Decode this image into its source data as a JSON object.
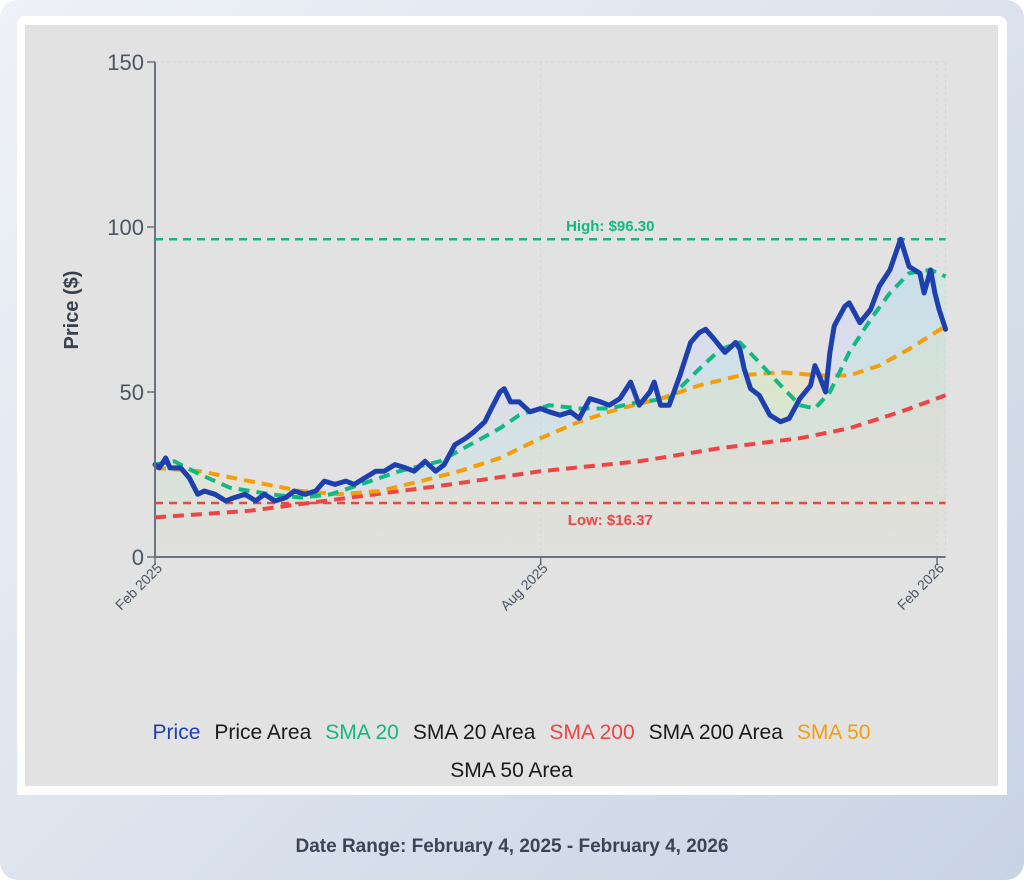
{
  "chart_data": {
    "type": "line",
    "title": "",
    "xlabel": "",
    "ylabel": "Price ($)",
    "ylim": [
      0,
      150
    ],
    "yticks": [
      0,
      50,
      100,
      150
    ],
    "x_unit": "days since Feb 4, 2025",
    "xlim": [
      0,
      369
    ],
    "xticks": [
      {
        "day": 0,
        "label": "Feb 2025"
      },
      {
        "day": 180,
        "label": "Aug 2025"
      },
      {
        "day": 365,
        "label": "Feb 2026"
      }
    ],
    "grid": true,
    "legend_position": "bottom",
    "annotations": [
      {
        "type": "hline",
        "value": 96.3,
        "label": "High: $96.30",
        "color": "#10b981"
      },
      {
        "type": "hline",
        "value": 16.37,
        "label": "Low: $16.37",
        "color": "#ef4444"
      }
    ],
    "series": [
      {
        "name": "Price",
        "color": "#1e40af",
        "style": "solid",
        "area": true,
        "area_name": "Price Area",
        "points": [
          [
            0,
            28
          ],
          [
            2,
            27
          ],
          [
            5,
            30
          ],
          [
            7,
            27
          ],
          [
            12,
            27
          ],
          [
            16,
            24
          ],
          [
            20,
            19
          ],
          [
            23,
            20
          ],
          [
            28,
            19
          ],
          [
            33,
            17
          ],
          [
            37,
            18
          ],
          [
            42,
            19
          ],
          [
            47,
            17
          ],
          [
            51,
            19
          ],
          [
            56,
            17
          ],
          [
            61,
            18
          ],
          [
            65,
            20
          ],
          [
            70,
            19
          ],
          [
            75,
            20
          ],
          [
            79,
            23
          ],
          [
            84,
            22
          ],
          [
            89,
            23
          ],
          [
            93,
            22
          ],
          [
            98,
            24
          ],
          [
            103,
            26
          ],
          [
            107,
            26
          ],
          [
            112,
            28
          ],
          [
            117,
            27
          ],
          [
            121,
            26
          ],
          [
            126,
            29
          ],
          [
            131,
            26
          ],
          [
            135,
            28
          ],
          [
            140,
            34
          ],
          [
            145,
            36
          ],
          [
            149,
            38
          ],
          [
            154,
            41
          ],
          [
            157,
            45
          ],
          [
            161,
            50
          ],
          [
            163,
            51
          ],
          [
            166,
            47
          ],
          [
            170,
            47
          ],
          [
            175,
            44
          ],
          [
            180,
            45
          ],
          [
            184,
            44
          ],
          [
            189,
            43
          ],
          [
            194,
            44
          ],
          [
            198,
            42
          ],
          [
            203,
            48
          ],
          [
            208,
            47
          ],
          [
            212,
            46
          ],
          [
            217,
            48
          ],
          [
            222,
            53
          ],
          [
            226,
            46
          ],
          [
            231,
            50
          ],
          [
            233,
            53
          ],
          [
            236,
            46
          ],
          [
            240,
            46
          ],
          [
            245,
            55
          ],
          [
            250,
            65
          ],
          [
            254,
            68
          ],
          [
            257,
            69
          ],
          [
            261,
            66
          ],
          [
            266,
            62
          ],
          [
            271,
            65
          ],
          [
            273,
            63
          ],
          [
            275,
            57
          ],
          [
            278,
            51
          ],
          [
            282,
            49
          ],
          [
            287,
            43
          ],
          [
            292,
            41
          ],
          [
            296,
            42
          ],
          [
            301,
            48
          ],
          [
            306,
            52
          ],
          [
            308,
            58
          ],
          [
            310,
            55
          ],
          [
            313,
            50
          ],
          [
            315,
            62
          ],
          [
            317,
            70
          ],
          [
            322,
            76
          ],
          [
            324,
            77
          ],
          [
            329,
            71
          ],
          [
            334,
            75
          ],
          [
            338,
            82
          ],
          [
            343,
            87
          ],
          [
            348,
            96.3
          ],
          [
            352,
            88
          ],
          [
            357,
            86
          ],
          [
            359,
            80
          ],
          [
            362,
            87
          ],
          [
            364,
            80
          ],
          [
            366,
            75
          ],
          [
            369,
            69
          ]
        ]
      },
      {
        "name": "SMA 20",
        "color": "#10b981",
        "style": "dashed",
        "area": true,
        "area_name": "SMA 20 Area",
        "points": [
          [
            0,
            28
          ],
          [
            9,
            29
          ],
          [
            21,
            25
          ],
          [
            35,
            21
          ],
          [
            54,
            19
          ],
          [
            68,
            18
          ],
          [
            82,
            19
          ],
          [
            96,
            22
          ],
          [
            114,
            26
          ],
          [
            133,
            29
          ],
          [
            147,
            34
          ],
          [
            161,
            39
          ],
          [
            170,
            43
          ],
          [
            184,
            46
          ],
          [
            198,
            45
          ],
          [
            212,
            45
          ],
          [
            226,
            47
          ],
          [
            240,
            48
          ],
          [
            254,
            57
          ],
          [
            264,
            63
          ],
          [
            273,
            65
          ],
          [
            282,
            59
          ],
          [
            292,
            52
          ],
          [
            301,
            46
          ],
          [
            308,
            45
          ],
          [
            315,
            50
          ],
          [
            324,
            62
          ],
          [
            334,
            72
          ],
          [
            343,
            80
          ],
          [
            352,
            86
          ],
          [
            362,
            87
          ],
          [
            369,
            85
          ]
        ]
      },
      {
        "name": "SMA 200",
        "color": "#ef4444",
        "style": "dashed",
        "area": true,
        "area_name": "SMA 200 Area",
        "points": [
          [
            0,
            12
          ],
          [
            44,
            14
          ],
          [
            91,
            18
          ],
          [
            138,
            22
          ],
          [
            180,
            26
          ],
          [
            226,
            29
          ],
          [
            264,
            33
          ],
          [
            301,
            36
          ],
          [
            324,
            39
          ],
          [
            348,
            44
          ],
          [
            369,
            49
          ]
        ]
      },
      {
        "name": "SMA 50",
        "color": "#f59e0b",
        "style": "dashed",
        "area": true,
        "area_name": "SMA 50 Area",
        "points": [
          [
            0,
            27
          ],
          [
            21,
            26
          ],
          [
            44,
            23
          ],
          [
            68,
            20
          ],
          [
            86,
            19
          ],
          [
            105,
            20
          ],
          [
            124,
            23
          ],
          [
            142,
            26
          ],
          [
            161,
            30
          ],
          [
            180,
            36
          ],
          [
            198,
            41
          ],
          [
            217,
            45
          ],
          [
            236,
            48
          ],
          [
            254,
            52
          ],
          [
            273,
            55
          ],
          [
            292,
            56
          ],
          [
            310,
            55
          ],
          [
            324,
            55
          ],
          [
            338,
            58
          ],
          [
            352,
            63
          ],
          [
            369,
            70
          ]
        ]
      }
    ]
  },
  "legend": [
    {
      "label": "Price",
      "color": "#1e40af"
    },
    {
      "label": "Price Area",
      "color": "#1a1a1a"
    },
    {
      "label": "SMA 20",
      "color": "#10b981"
    },
    {
      "label": "SMA 20 Area",
      "color": "#1a1a1a"
    },
    {
      "label": "SMA 200",
      "color": "#ef4444"
    },
    {
      "label": "SMA 200 Area",
      "color": "#1a1a1a"
    },
    {
      "label": "SMA 50",
      "color": "#f59e0b"
    },
    {
      "label": "SMA 50 Area",
      "color": "#1a1a1a"
    }
  ],
  "footer": {
    "date_range": "Date Range: February 4, 2025 - February 4, 2026"
  }
}
